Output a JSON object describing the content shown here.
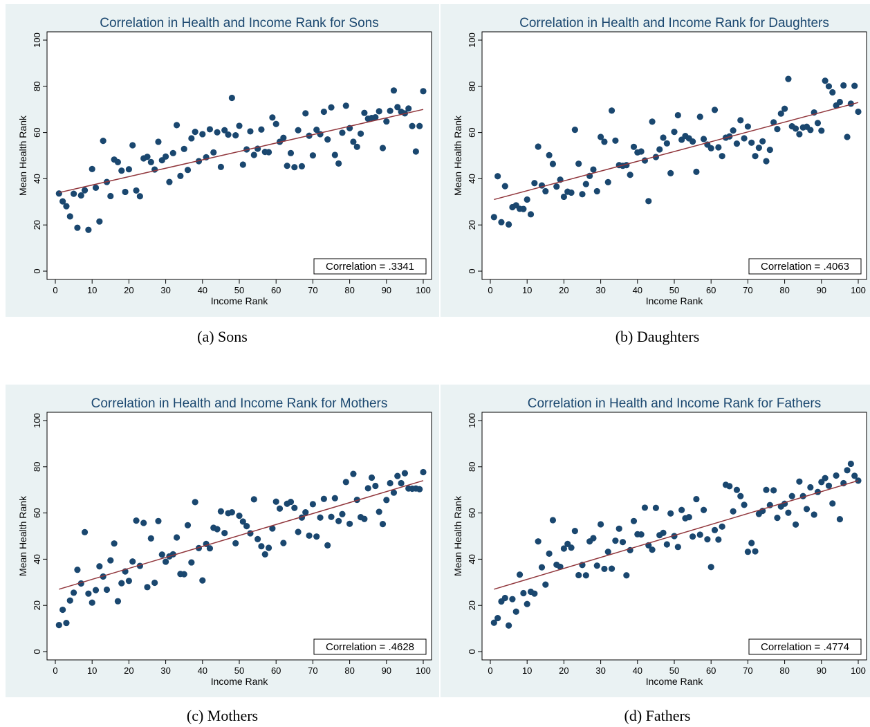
{
  "style": {
    "panel_bg": "#eaf2f3",
    "plot_bg": "#ffffff",
    "title_color": "#1a476f",
    "point_color": "#1a476f",
    "fit_line_color": "#90353b"
  },
  "chart_data": [
    {
      "type": "scatter",
      "title": "Correlation in Health and Income Rank for Sons",
      "caption": "(a) Sons",
      "xlabel": "Income Rank",
      "ylabel": "Mean Health Rank",
      "xlim": [
        0,
        100
      ],
      "ylim": [
        0,
        100
      ],
      "xticks": [
        0,
        10,
        20,
        30,
        40,
        50,
        60,
        70,
        80,
        90,
        100
      ],
      "yticks": [
        0,
        20,
        40,
        60,
        80,
        100
      ],
      "grid": false,
      "annotation": "Correlation = .3341",
      "fit_line": {
        "from": [
          1,
          34
        ],
        "to": [
          100,
          70
        ]
      },
      "x": [
        1,
        2,
        3,
        4,
        5,
        6,
        7,
        8,
        9,
        10,
        11,
        12,
        13,
        14,
        15,
        16,
        17,
        18,
        19,
        20,
        21,
        22,
        23,
        24,
        25,
        26,
        27,
        28,
        29,
        30,
        31,
        32,
        33,
        34,
        35,
        36,
        37,
        38,
        39,
        40,
        41,
        42,
        43,
        44,
        45,
        46,
        47,
        48,
        49,
        50,
        51,
        52,
        53,
        54,
        55,
        56,
        57,
        58,
        59,
        60,
        61,
        62,
        63,
        64,
        65,
        66,
        67,
        68,
        69,
        70,
        71,
        72,
        73,
        74,
        75,
        76,
        77,
        78,
        79,
        80,
        81,
        82,
        83,
        84,
        85,
        86,
        87,
        88,
        89,
        90,
        91,
        92,
        93,
        94,
        95,
        96,
        97,
        98,
        99,
        100
      ],
      "y": [
        33.6,
        30.2,
        28.1,
        23.7,
        33.5,
        18.8,
        32.8,
        35.0,
        17.9,
        44.2,
        36.1,
        21.5,
        56.4,
        38.6,
        32.5,
        48.3,
        47.2,
        43.5,
        34.3,
        44.1,
        54.5,
        34.9,
        32.4,
        48.8,
        49.5,
        47.2,
        44.0,
        56.0,
        48.0,
        49.6,
        38.6,
        51.1,
        63.2,
        41.2,
        52.9,
        43.8,
        57.5,
        60.3,
        47.6,
        59.3,
        49.3,
        61.4,
        51.4,
        60.1,
        45.1,
        61.0,
        59.1,
        75.0,
        58.8,
        62.9,
        46.1,
        52.7,
        60.5,
        50.3,
        53.0,
        61.3,
        51.6,
        51.5,
        66.5,
        63.7,
        56.0,
        57.7,
        45.6,
        51.1,
        45.0,
        61.0,
        45.4,
        68.3,
        58.6,
        50.1,
        61.2,
        59.3,
        69.0,
        57.0,
        70.9,
        50.3,
        46.6,
        59.9,
        71.6,
        61.9,
        56.0,
        53.8,
        59.5,
        68.5,
        66.0,
        66.3,
        66.6,
        69.2,
        53.3,
        64.8,
        69.4,
        78.2,
        71.0,
        69.0,
        68.3,
        70.4,
        62.8,
        51.8,
        62.8,
        77.9
      ]
    },
    {
      "type": "scatter",
      "title": "Correlation in Health and Income Rank for Daughters",
      "caption": "(b) Daughters",
      "xlabel": "Income Rank",
      "ylabel": "Mean Health Rank",
      "xlim": [
        0,
        100
      ],
      "ylim": [
        0,
        100
      ],
      "xticks": [
        0,
        10,
        20,
        30,
        40,
        50,
        60,
        70,
        80,
        90,
        100
      ],
      "yticks": [
        0,
        20,
        40,
        60,
        80,
        100
      ],
      "grid": false,
      "annotation": "Correlation = .4063",
      "fit_line": {
        "from": [
          1,
          31
        ],
        "to": [
          100,
          73
        ]
      },
      "x": [
        1,
        2,
        3,
        4,
        5,
        6,
        7,
        8,
        9,
        10,
        11,
        12,
        13,
        14,
        15,
        16,
        17,
        18,
        19,
        20,
        21,
        22,
        23,
        24,
        25,
        26,
        27,
        28,
        29,
        30,
        31,
        32,
        33,
        34,
        35,
        36,
        37,
        38,
        39,
        40,
        41,
        42,
        43,
        44,
        45,
        46,
        47,
        48,
        49,
        50,
        51,
        52,
        53,
        54,
        55,
        56,
        57,
        58,
        59,
        60,
        61,
        62,
        63,
        64,
        65,
        66,
        67,
        68,
        69,
        70,
        71,
        72,
        73,
        74,
        75,
        76,
        77,
        78,
        79,
        80,
        81,
        82,
        83,
        84,
        85,
        86,
        87,
        88,
        89,
        90,
        91,
        92,
        93,
        94,
        95,
        96,
        97,
        98,
        99,
        100
      ],
      "y": [
        23.4,
        41.1,
        21.2,
        36.8,
        20.2,
        27.7,
        28.5,
        27.0,
        26.9,
        31.0,
        24.6,
        38.1,
        53.9,
        37.1,
        34.6,
        50.2,
        46.4,
        36.6,
        39.6,
        32.2,
        34.4,
        34.0,
        61.2,
        46.5,
        33.3,
        37.7,
        41.2,
        44.0,
        34.6,
        58.1,
        56.0,
        38.5,
        69.5,
        56.5,
        45.9,
        45.6,
        45.9,
        41.7,
        53.8,
        51.4,
        51.8,
        47.9,
        30.3,
        64.7,
        49.4,
        52.7,
        57.8,
        55.3,
        42.4,
        60.3,
        67.5,
        56.9,
        58.5,
        57.5,
        56.1,
        43.0,
        66.8,
        57.2,
        54.8,
        53.2,
        69.8,
        53.6,
        49.8,
        57.8,
        58.3,
        60.9,
        55.2,
        65.3,
        57.5,
        62.6,
        55.6,
        49.8,
        53.4,
        56.2,
        47.6,
        52.5,
        64.4,
        61.5,
        68.2,
        70.3,
        83.2,
        62.7,
        61.7,
        59.3,
        62.2,
        62.5,
        61.1,
        68.7,
        64.1,
        60.8,
        82.4,
        80.0,
        77.4,
        71.7,
        73.2,
        80.4,
        58.1,
        72.5,
        80.2,
        69.0
      ]
    },
    {
      "type": "scatter",
      "title": "Correlation in Health and Income Rank for Mothers",
      "caption": "(c) Mothers",
      "xlabel": "Income Rank",
      "ylabel": "Mean Health Rank",
      "xlim": [
        0,
        100
      ],
      "ylim": [
        0,
        100
      ],
      "xticks": [
        0,
        10,
        20,
        30,
        40,
        50,
        60,
        70,
        80,
        90,
        100
      ],
      "yticks": [
        0,
        20,
        40,
        60,
        80,
        100
      ],
      "grid": false,
      "annotation": "Correlation = .4628",
      "fit_line": {
        "from": [
          1,
          27
        ],
        "to": [
          100,
          74
        ]
      },
      "x": [
        1,
        2,
        3,
        4,
        5,
        6,
        7,
        8,
        9,
        10,
        11,
        12,
        13,
        14,
        15,
        16,
        17,
        18,
        19,
        20,
        21,
        22,
        23,
        24,
        25,
        26,
        27,
        28,
        29,
        30,
        31,
        32,
        33,
        34,
        35,
        36,
        37,
        38,
        39,
        40,
        41,
        42,
        43,
        44,
        45,
        46,
        47,
        48,
        49,
        50,
        51,
        52,
        53,
        54,
        55,
        56,
        57,
        58,
        59,
        60,
        61,
        62,
        63,
        64,
        65,
        66,
        67,
        68,
        69,
        70,
        71,
        72,
        73,
        74,
        75,
        76,
        77,
        78,
        79,
        80,
        81,
        82,
        83,
        84,
        85,
        86,
        87,
        88,
        89,
        90,
        91,
        92,
        93,
        94,
        95,
        96,
        97,
        98,
        99,
        100
      ],
      "y": [
        11.5,
        18.1,
        12.4,
        22.1,
        25.5,
        35.4,
        29.5,
        51.7,
        25.1,
        21.2,
        26.6,
        36.9,
        32.5,
        26.8,
        39.5,
        46.8,
        21.8,
        29.6,
        34.7,
        30.6,
        39.0,
        56.7,
        37.1,
        55.7,
        27.9,
        49.0,
        29.8,
        56.5,
        42.0,
        38.9,
        41.2,
        42.1,
        49.4,
        33.6,
        33.5,
        54.7,
        38.6,
        64.7,
        44.8,
        30.8,
        46.6,
        44.7,
        53.6,
        53.0,
        60.7,
        51.3,
        59.9,
        60.3,
        46.9,
        58.8,
        56.3,
        54.3,
        51.2,
        65.9,
        48.7,
        45.6,
        42.1,
        44.9,
        53.3,
        64.9,
        61.9,
        47.0,
        64.0,
        64.8,
        62.2,
        51.8,
        58.0,
        60.3,
        50.2,
        63.8,
        49.8,
        58.0,
        66.1,
        46.0,
        58.3,
        66.4,
        56.5,
        59.5,
        73.4,
        55.3,
        76.9,
        65.7,
        58.2,
        57.4,
        70.7,
        75.3,
        71.7,
        60.5,
        55.2,
        65.6,
        72.9,
        68.8,
        76.0,
        72.9,
        77.2,
        70.6,
        70.5,
        70.6,
        70.3,
        77.7
      ]
    },
    {
      "type": "scatter",
      "title": "Correlation in Health and Income Rank for Fathers",
      "caption": "(d) Fathers",
      "xlabel": "Income Rank",
      "ylabel": "Mean Health Rank",
      "xlim": [
        0,
        100
      ],
      "ylim": [
        0,
        100
      ],
      "xticks": [
        0,
        10,
        20,
        30,
        40,
        50,
        60,
        70,
        80,
        90,
        100
      ],
      "yticks": [
        0,
        20,
        40,
        60,
        80,
        100
      ],
      "grid": false,
      "annotation": "Correlation = .4774",
      "fit_line": {
        "from": [
          1,
          27
        ],
        "to": [
          100,
          74
        ]
      },
      "x": [
        1,
        2,
        3,
        4,
        5,
        6,
        7,
        8,
        9,
        10,
        11,
        12,
        13,
        14,
        15,
        16,
        17,
        18,
        19,
        20,
        21,
        22,
        23,
        24,
        25,
        26,
        27,
        28,
        29,
        30,
        31,
        32,
        33,
        34,
        35,
        36,
        37,
        38,
        39,
        40,
        41,
        42,
        43,
        44,
        45,
        46,
        47,
        48,
        49,
        50,
        51,
        52,
        53,
        54,
        55,
        56,
        57,
        58,
        59,
        60,
        61,
        62,
        63,
        64,
        65,
        66,
        67,
        68,
        69,
        70,
        71,
        72,
        73,
        74,
        75,
        76,
        77,
        78,
        79,
        80,
        81,
        82,
        83,
        84,
        85,
        86,
        87,
        88,
        89,
        90,
        91,
        92,
        93,
        94,
        95,
        96,
        97,
        98,
        99,
        100
      ],
      "y": [
        12.5,
        14.5,
        21.7,
        23.2,
        11.3,
        22.7,
        17.3,
        33.3,
        25.3,
        20.6,
        25.9,
        25.1,
        47.7,
        36.5,
        29.0,
        42.4,
        56.9,
        37.6,
        36.7,
        44.6,
        46.6,
        45.0,
        52.2,
        33.1,
        37.5,
        33.0,
        47.7,
        49.1,
        37.2,
        55.1,
        35.8,
        43.2,
        35.9,
        48.0,
        53.2,
        47.4,
        33.0,
        43.9,
        56.5,
        50.8,
        50.7,
        62.3,
        46.0,
        44.1,
        62.2,
        50.4,
        51.4,
        46.4,
        59.8,
        50.0,
        45.3,
        61.3,
        57.7,
        58.2,
        49.8,
        66.0,
        50.6,
        61.3,
        48.6,
        36.6,
        52.6,
        48.5,
        54.1,
        72.2,
        71.6,
        60.7,
        70.0,
        67.3,
        63.5,
        43.2,
        47.0,
        43.4,
        59.6,
        60.9,
        70.0,
        63.4,
        69.8,
        57.9,
        62.8,
        64.0,
        60.1,
        67.3,
        55.0,
        73.6,
        67.3,
        61.7,
        71.1,
        59.3,
        69.1,
        73.4,
        75.1,
        71.8,
        64.1,
        76.2,
        57.3,
        72.9,
        78.5,
        81.3,
        76.1,
        74.0
      ]
    }
  ]
}
